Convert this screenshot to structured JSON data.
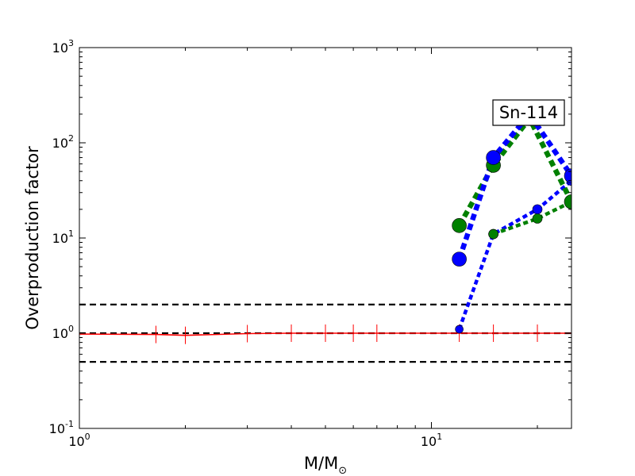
{
  "chart_data": {
    "type": "line",
    "title": "",
    "xlabel": "M/M",
    "xlabel_sub": "⊙",
    "ylabel": "Overproduction factor",
    "xscale": "log",
    "yscale": "log",
    "xlim": [
      1,
      25
    ],
    "ylim": [
      0.1,
      1000
    ],
    "grid": false,
    "x_ticks": [
      {
        "base": "10",
        "exp": "0",
        "value": 1
      },
      {
        "base": "10",
        "exp": "1",
        "value": 10
      }
    ],
    "y_ticks": [
      {
        "base": "10",
        "exp": "-1",
        "value": 0.1
      },
      {
        "base": "10",
        "exp": "0",
        "value": 1
      },
      {
        "base": "10",
        "exp": "1",
        "value": 10
      },
      {
        "base": "10",
        "exp": "2",
        "value": 100
      },
      {
        "base": "10",
        "exp": "3",
        "value": 1000
      }
    ],
    "annotation": "Sn-114",
    "reference_lines": [
      {
        "y": 2.0,
        "color": "#000000",
        "style": "dashed"
      },
      {
        "y": 1.0,
        "color": "#000000",
        "style": "dashed"
      },
      {
        "y": 0.5,
        "color": "#000000",
        "style": "dashed"
      }
    ],
    "series": [
      {
        "color": "#ff0000",
        "style": "solid",
        "marker": "tick",
        "x": [
          1.0,
          1.65,
          2.0,
          3.0,
          4.0,
          5.0,
          6.0,
          7.0,
          12.0,
          15.0,
          20.0,
          25.0
        ],
        "y": [
          0.98,
          0.97,
          0.95,
          0.99,
          1.0,
          1.0,
          1.0,
          1.0,
          1.0,
          1.0,
          1.0,
          1.0
        ]
      },
      {
        "color": "#0000ff",
        "style": "dotted",
        "marker": "circle",
        "x": [
          12,
          15,
          20,
          25
        ],
        "y": [
          1.1,
          11,
          20,
          40
        ]
      },
      {
        "color": "#008000",
        "style": "dotted",
        "marker": "circle",
        "x": [
          15,
          20,
          25
        ],
        "y": [
          11,
          16,
          24
        ]
      },
      {
        "color": "#008000",
        "style": "dotted",
        "marker": "circle",
        "x": [
          12,
          15,
          19,
          25
        ],
        "y": [
          13.5,
          58,
          180,
          24
        ]
      },
      {
        "color": "#0000ff",
        "style": "dotted",
        "marker": "circle",
        "x": [
          12,
          15,
          19,
          25
        ],
        "y": [
          6,
          70,
          200,
          45
        ]
      }
    ]
  }
}
